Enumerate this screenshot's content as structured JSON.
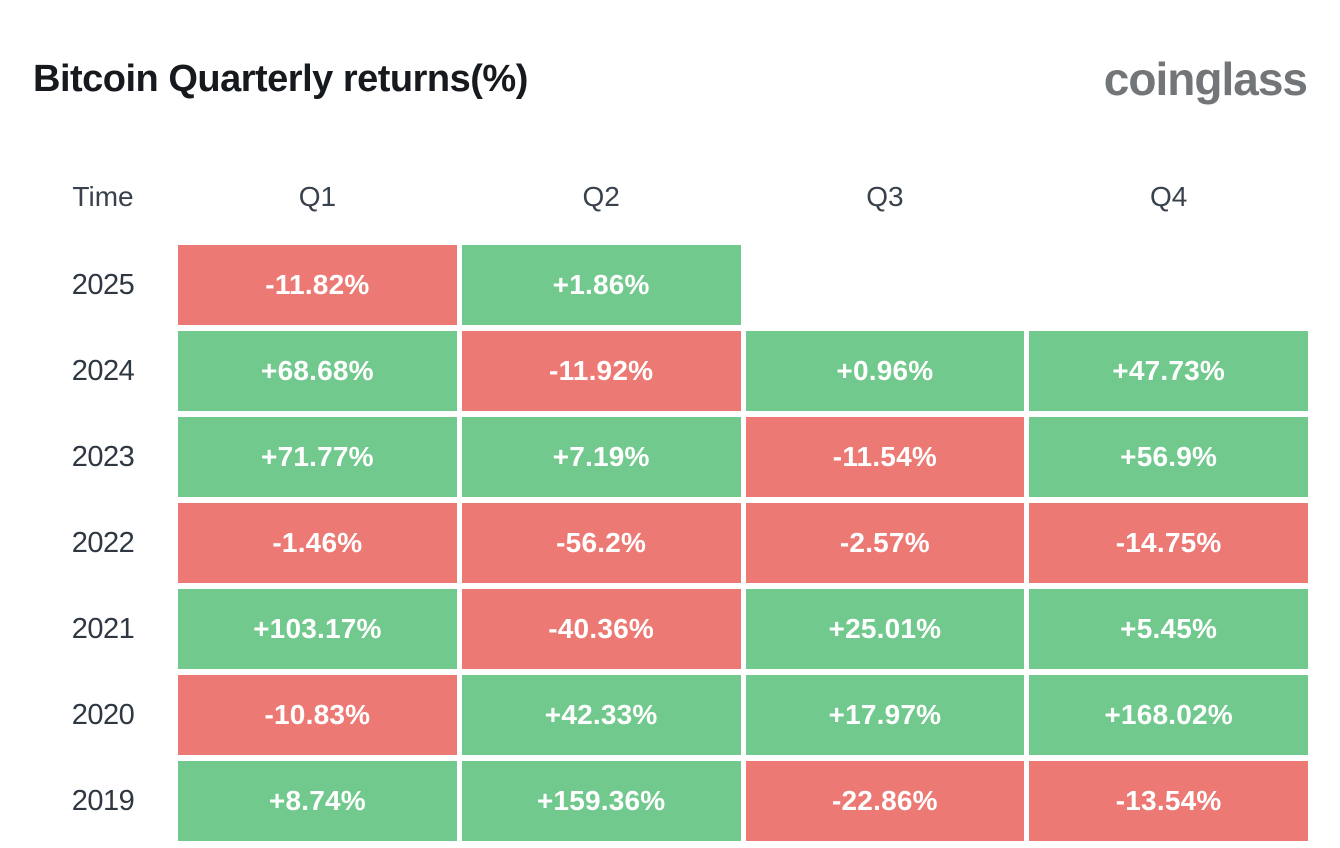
{
  "header": {
    "title": "Bitcoin Quarterly returns(%)",
    "logo_text": "coinglass"
  },
  "colors": {
    "positive": "#71C98D",
    "negative": "#EC7974",
    "title_text": "#16191D",
    "logo_text": "#737679",
    "label_text": "#2F3842",
    "cell_text": "#FFFFFF",
    "background": "#FFFFFF"
  },
  "table": {
    "headers": [
      "Time",
      "Q1",
      "Q2",
      "Q3",
      "Q4"
    ],
    "rows": [
      {
        "year": "2025",
        "cells": [
          "-11.82%",
          "+1.86%",
          "",
          ""
        ]
      },
      {
        "year": "2024",
        "cells": [
          "+68.68%",
          "-11.92%",
          "+0.96%",
          "+47.73%"
        ]
      },
      {
        "year": "2023",
        "cells": [
          "+71.77%",
          "+7.19%",
          "-11.54%",
          "+56.9%"
        ]
      },
      {
        "year": "2022",
        "cells": [
          "-1.46%",
          "-56.2%",
          "-2.57%",
          "-14.75%"
        ]
      },
      {
        "year": "2021",
        "cells": [
          "+103.17%",
          "-40.36%",
          "+25.01%",
          "+5.45%"
        ]
      },
      {
        "year": "2020",
        "cells": [
          "-10.83%",
          "+42.33%",
          "+17.97%",
          "+168.02%"
        ]
      },
      {
        "year": "2019",
        "cells": [
          "+8.74%",
          "+159.36%",
          "-22.86%",
          "-13.54%"
        ]
      }
    ]
  },
  "chart_data": {
    "type": "heatmap",
    "title": "Bitcoin Quarterly returns(%)",
    "x_categories": [
      "Q1",
      "Q2",
      "Q3",
      "Q4"
    ],
    "y_categories": [
      "2025",
      "2024",
      "2023",
      "2022",
      "2021",
      "2020",
      "2019"
    ],
    "values_pct": [
      [
        -11.82,
        1.86,
        null,
        null
      ],
      [
        68.68,
        -11.92,
        0.96,
        47.73
      ],
      [
        71.77,
        7.19,
        -11.54,
        56.9
      ],
      [
        -1.46,
        -56.2,
        -2.57,
        -14.75
      ],
      [
        103.17,
        -40.36,
        25.01,
        5.45
      ],
      [
        -10.83,
        42.33,
        17.97,
        168.02
      ],
      [
        8.74,
        159.36,
        -22.86,
        -13.54
      ]
    ],
    "color_rule": "cell is green (#71C98D) if value >= 0, red (#EC7974) if value < 0, blank if no data",
    "legend": "none",
    "grid": false,
    "watermark": "coinglass"
  }
}
